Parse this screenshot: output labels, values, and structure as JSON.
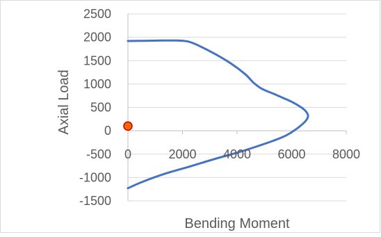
{
  "chart_data": {
    "type": "scatter",
    "title": "",
    "xlabel": "Bending Moment",
    "ylabel": "Axial Load",
    "xlim": [
      0,
      8000
    ],
    "ylim": [
      -1500,
      2500
    ],
    "x_ticks": [
      "0",
      "2000",
      "4000",
      "6000",
      "8000"
    ],
    "y_ticks": [
      "2500",
      "2000",
      "1500",
      "1000",
      "500",
      "0",
      "-500",
      "-1000",
      "-1500"
    ],
    "grid": "horizontal",
    "legend": "none",
    "series": [
      {
        "kind": "line",
        "color": "#4472c4",
        "x": [
          0,
          600,
          1300,
          1800,
          2200,
          2600,
          3200,
          3800,
          4300,
          4600,
          4900,
          5300,
          5700,
          6000,
          6300,
          6500,
          6600,
          6500,
          6200,
          5800,
          5300,
          4700,
          4000,
          3200,
          2300,
          1300,
          500,
          0
        ],
        "y": [
          1920,
          1925,
          1930,
          1930,
          1910,
          1820,
          1640,
          1430,
          1210,
          1030,
          900,
          800,
          700,
          620,
          520,
          430,
          320,
          200,
          50,
          -100,
          -220,
          -340,
          -470,
          -600,
          -760,
          -930,
          -1100,
          -1230
        ]
      },
      {
        "kind": "point",
        "color": "#ff0000",
        "fill": "#ff6600",
        "x": [
          0
        ],
        "y": [
          100
        ]
      }
    ]
  },
  "colors": {
    "curve": "#4472c4",
    "marker_fill": "#ff6600",
    "marker_stroke": "#c00000",
    "grid": "#d9d9d9",
    "axis": "#bfbfbf",
    "text": "#595959",
    "border": "#d9d9d9"
  }
}
